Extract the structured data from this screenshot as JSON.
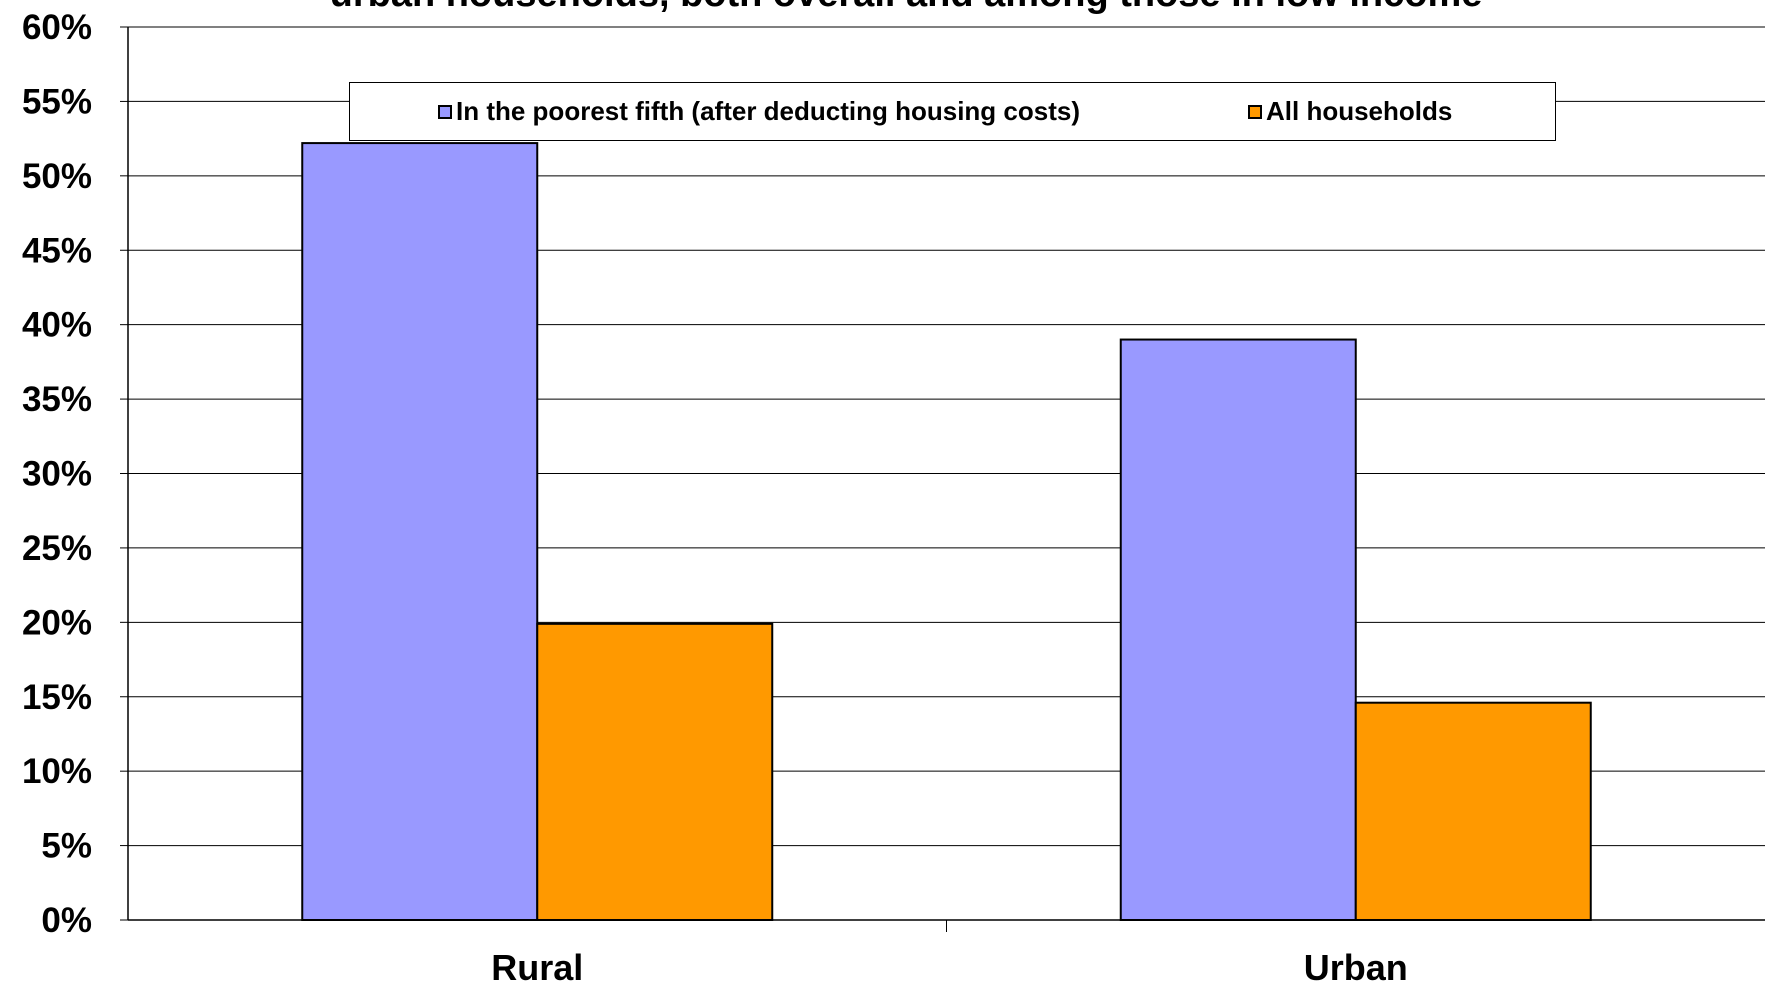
{
  "chart_data": {
    "type": "bar",
    "title": "urban households, both overall and among those in low income",
    "categories": [
      "Rural",
      "Urban"
    ],
    "series": [
      {
        "name": "In the poorest fifth (after deducting housing costs)",
        "color": "#9999FF",
        "values": [
          52.2,
          39.0
        ]
      },
      {
        "name": "All households",
        "color": "#FF9900",
        "values": [
          19.9,
          14.6
        ]
      }
    ],
    "ylim": [
      0,
      60
    ],
    "ytick_step": 5,
    "ytick_labels": [
      "0%",
      "5%",
      "10%",
      "15%",
      "20%",
      "25%",
      "30%",
      "35%",
      "40%",
      "45%",
      "50%",
      "55%",
      "60%"
    ],
    "grid": true,
    "legend_position": "top"
  }
}
